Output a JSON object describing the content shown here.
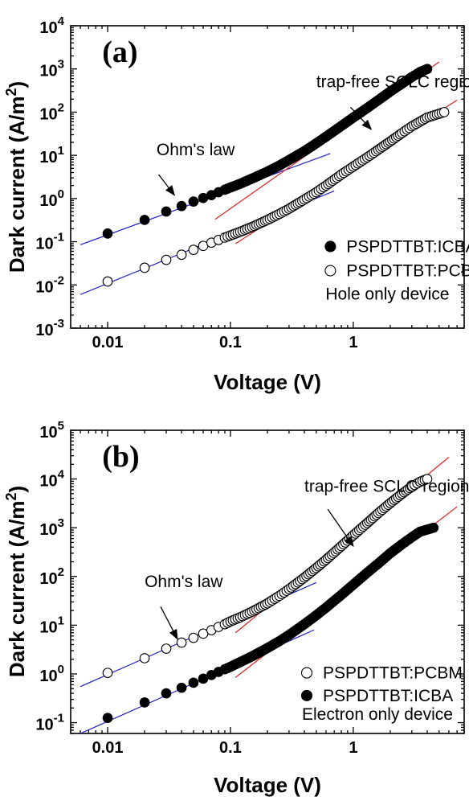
{
  "chart_data": [
    {
      "type": "scatter",
      "panel_label": "(a)",
      "xlabel": "Voltage (V)",
      "ylabel_prefix": "Dark current (A/m",
      "ylabel_sup": "2",
      "ylabel_suffix": ")",
      "xscale": "log",
      "yscale": "log",
      "xlim": [
        0.005,
        8
      ],
      "ylim": [
        0.001,
        10000
      ],
      "x_ticks": [
        {
          "value": 0.01,
          "label": "0.01"
        },
        {
          "value": 0.1,
          "label": "0.1"
        },
        {
          "value": 1,
          "label": "1"
        }
      ],
      "y_ticks": [
        {
          "value": 0.001,
          "base": "10",
          "exp": "-3"
        },
        {
          "value": 0.01,
          "base": "10",
          "exp": "-2"
        },
        {
          "value": 0.1,
          "base": "10",
          "exp": "-1"
        },
        {
          "value": 1,
          "base": "10",
          "exp": "0"
        },
        {
          "value": 10,
          "base": "10",
          "exp": "1"
        },
        {
          "value": 100,
          "base": "10",
          "exp": "2"
        },
        {
          "value": 1000,
          "base": "10",
          "exp": "3"
        },
        {
          "value": 10000,
          "base": "10",
          "exp": "4"
        }
      ],
      "series": [
        {
          "name": "PSPDTTBT:ICBA",
          "marker": "filled-circle",
          "points": [
            [
              0.01,
              0.155
            ],
            [
              0.02,
              0.32
            ],
            [
              0.03,
              0.5
            ],
            [
              0.04,
              0.67
            ],
            [
              0.05,
              0.85
            ],
            [
              0.06,
              1.03
            ],
            [
              0.07,
              1.2
            ],
            [
              0.08,
              1.4
            ],
            [
              0.09,
              1.6
            ],
            [
              0.1,
              1.8
            ],
            [
              0.12,
              2.2
            ],
            [
              0.15,
              2.9
            ],
            [
              0.2,
              4.2
            ],
            [
              0.25,
              5.8
            ],
            [
              0.3,
              7.8
            ],
            [
              0.4,
              12.5
            ],
            [
              0.5,
              19
            ],
            [
              0.6,
              27
            ],
            [
              0.8,
              48
            ],
            [
              1.0,
              75
            ],
            [
              1.3,
              125
            ],
            [
              1.6,
              190
            ],
            [
              2.0,
              300
            ],
            [
              2.5,
              460
            ],
            [
              3.0,
              650
            ],
            [
              3.5,
              850
            ],
            [
              4.0,
              1000
            ]
          ]
        },
        {
          "name": "PSPDTTBT:PCBM",
          "marker": "open-circle",
          "points": [
            [
              0.01,
              0.012
            ],
            [
              0.02,
              0.025
            ],
            [
              0.03,
              0.038
            ],
            [
              0.04,
              0.05
            ],
            [
              0.05,
              0.065
            ],
            [
              0.06,
              0.08
            ],
            [
              0.07,
              0.095
            ],
            [
              0.08,
              0.11
            ],
            [
              0.09,
              0.125
            ],
            [
              0.1,
              0.14
            ],
            [
              0.12,
              0.17
            ],
            [
              0.15,
              0.22
            ],
            [
              0.2,
              0.32
            ],
            [
              0.25,
              0.44
            ],
            [
              0.3,
              0.58
            ],
            [
              0.4,
              0.95
            ],
            [
              0.5,
              1.4
            ],
            [
              0.6,
              2.0
            ],
            [
              0.8,
              3.6
            ],
            [
              1.0,
              5.5
            ],
            [
              1.3,
              9
            ],
            [
              1.6,
              13.5
            ],
            [
              2.0,
              21
            ],
            [
              2.5,
              33
            ],
            [
              3.0,
              47
            ],
            [
              4.0,
              75
            ],
            [
              5.5,
              100
            ]
          ]
        }
      ],
      "fit_lines": [
        {
          "kind": "ohmic",
          "color": "#1f1fcc",
          "from": [
            0.006,
            0.085
          ],
          "to": [
            0.65,
            11
          ]
        },
        {
          "kind": "ohmic",
          "color": "#1f1fcc",
          "from": [
            0.006,
            0.006
          ],
          "to": [
            0.7,
            1.5
          ]
        },
        {
          "kind": "sclc",
          "color": "#e02020",
          "from": [
            0.075,
            0.33
          ],
          "to": [
            5.0,
            1450
          ]
        },
        {
          "kind": "sclc",
          "color": "#e02020",
          "from": [
            0.11,
            0.09
          ],
          "to": [
            7.0,
            190
          ]
        }
      ],
      "legend": {
        "placement": "bottom-right",
        "device_note": "Hole only device"
      },
      "annotations": [
        {
          "text": "trap-free SCLC region",
          "text_at": [
            0.5,
            380
          ],
          "arrow_from": [
            0.95,
            130
          ],
          "arrow_to": [
            1.4,
            40
          ]
        },
        {
          "text": "Ohm's law",
          "text_at": [
            0.025,
            10
          ],
          "arrow_from": [
            0.026,
            3.6
          ],
          "arrow_to": [
            0.035,
            1.2
          ]
        }
      ],
      "grid": false
    },
    {
      "type": "scatter",
      "panel_label": "(b)",
      "xlabel": "Voltage (V)",
      "ylabel_prefix": "Dark current (A/m",
      "ylabel_sup": "2",
      "ylabel_suffix": ")",
      "xscale": "log",
      "yscale": "log",
      "xlim": [
        0.005,
        8
      ],
      "ylim": [
        0.06,
        100000
      ],
      "x_ticks": [
        {
          "value": 0.01,
          "label": "0.01"
        },
        {
          "value": 0.1,
          "label": "0.1"
        },
        {
          "value": 1,
          "label": "1"
        }
      ],
      "y_ticks": [
        {
          "value": 0.1,
          "base": "10",
          "exp": "-1"
        },
        {
          "value": 1,
          "base": "10",
          "exp": "0"
        },
        {
          "value": 10,
          "base": "10",
          "exp": "1"
        },
        {
          "value": 100,
          "base": "10",
          "exp": "2"
        },
        {
          "value": 1000,
          "base": "10",
          "exp": "3"
        },
        {
          "value": 10000,
          "base": "10",
          "exp": "4"
        },
        {
          "value": 100000,
          "base": "10",
          "exp": "5"
        }
      ],
      "series": [
        {
          "name": "PSPDTTBT:PCBM",
          "marker": "open-circle",
          "points": [
            [
              0.01,
              1.05
            ],
            [
              0.02,
              2.1
            ],
            [
              0.03,
              3.3
            ],
            [
              0.04,
              4.4
            ],
            [
              0.05,
              5.5
            ],
            [
              0.06,
              6.7
            ],
            [
              0.07,
              7.9
            ],
            [
              0.08,
              9.2
            ],
            [
              0.09,
              10.5
            ],
            [
              0.1,
              12
            ],
            [
              0.12,
              14.5
            ],
            [
              0.15,
              19
            ],
            [
              0.2,
              28
            ],
            [
              0.25,
              40
            ],
            [
              0.3,
              55
            ],
            [
              0.4,
              95
            ],
            [
              0.5,
              150
            ],
            [
              0.6,
              220
            ],
            [
              0.8,
              420
            ],
            [
              1.0,
              700
            ],
            [
              1.3,
              1250
            ],
            [
              1.6,
              2000
            ],
            [
              2.0,
              3200
            ],
            [
              2.5,
              5000
            ],
            [
              3.0,
              7000
            ],
            [
              3.5,
              8800
            ],
            [
              4.0,
              10000
            ]
          ]
        },
        {
          "name": "PSPDTTBT:ICBA",
          "marker": "filled-circle",
          "points": [
            [
              0.01,
              0.125
            ],
            [
              0.02,
              0.26
            ],
            [
              0.03,
              0.4
            ],
            [
              0.04,
              0.52
            ],
            [
              0.05,
              0.66
            ],
            [
              0.06,
              0.8
            ],
            [
              0.07,
              0.95
            ],
            [
              0.08,
              1.1
            ],
            [
              0.09,
              1.25
            ],
            [
              0.1,
              1.4
            ],
            [
              0.12,
              1.75
            ],
            [
              0.15,
              2.3
            ],
            [
              0.2,
              3.4
            ],
            [
              0.25,
              4.7
            ],
            [
              0.3,
              6.3
            ],
            [
              0.4,
              10.5
            ],
            [
              0.5,
              16
            ],
            [
              0.6,
              23
            ],
            [
              0.8,
              42
            ],
            [
              1.0,
              68
            ],
            [
              1.3,
              120
            ],
            [
              1.6,
              185
            ],
            [
              2.0,
              300
            ],
            [
              2.5,
              460
            ],
            [
              3.0,
              640
            ],
            [
              3.5,
              830
            ],
            [
              4.5,
              1000
            ]
          ]
        }
      ],
      "fit_lines": [
        {
          "kind": "ohmic",
          "color": "#1f1fcc",
          "from": [
            0.006,
            0.55
          ],
          "to": [
            0.5,
            75
          ]
        },
        {
          "kind": "ohmic",
          "color": "#1f1fcc",
          "from": [
            0.006,
            0.06
          ],
          "to": [
            0.48,
            8
          ]
        },
        {
          "kind": "sclc",
          "color": "#e02020",
          "from": [
            0.11,
            7
          ],
          "to": [
            6.0,
            28000
          ]
        },
        {
          "kind": "sclc",
          "color": "#e02020",
          "from": [
            0.11,
            0.85
          ],
          "to": [
            7.0,
            2700
          ]
        }
      ],
      "legend": {
        "placement": "bottom-right",
        "device_note": "Electron only device"
      },
      "annotations": [
        {
          "text": "trap-free SCLC region",
          "text_at": [
            0.4,
            5500
          ],
          "arrow_from": [
            0.62,
            2400
          ],
          "arrow_to": [
            1.0,
            420
          ]
        },
        {
          "text": "Ohm's law",
          "text_at": [
            0.02,
            60
          ],
          "arrow_from": [
            0.027,
            24
          ],
          "arrow_to": [
            0.037,
            5.2
          ]
        }
      ],
      "grid": false
    }
  ]
}
